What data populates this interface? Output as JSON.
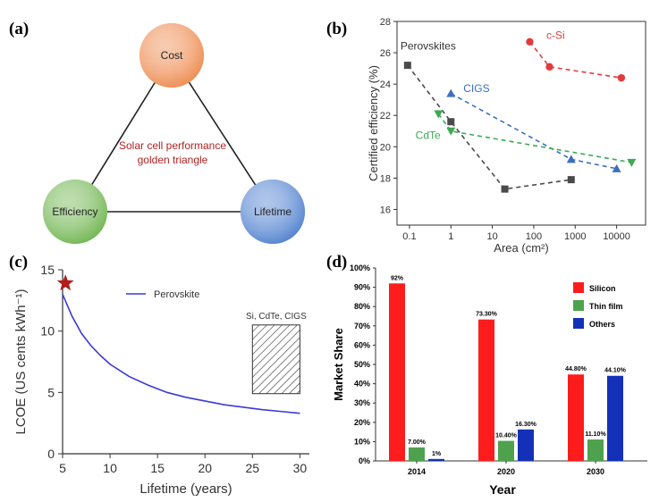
{
  "panels": {
    "a": {
      "label": "(a)",
      "title": "Solar cell performance golden triangle",
      "title_line1": "Solar cell performance",
      "title_line2": "golden triangle",
      "nodes": [
        {
          "name": "Cost",
          "color": "#ee8a4e"
        },
        {
          "name": "Efficiency",
          "color": "#6fb54f"
        },
        {
          "name": "Lifetime",
          "color": "#4f80cf"
        }
      ]
    },
    "b": {
      "label": "(b)"
    },
    "c": {
      "label": "(c)"
    },
    "d": {
      "label": "(d)"
    }
  },
  "chart_data": [
    {
      "id": "b",
      "type": "line",
      "x_scale": "log",
      "xlabel": "Area (cm²)",
      "ylabel": "Certified efficiency (%)",
      "xlim": [
        0.05,
        50000
      ],
      "ylim": [
        15,
        28
      ],
      "xticks": [
        0.1,
        1,
        10,
        100,
        1000,
        10000
      ],
      "xtick_labels": [
        "0.1",
        "1",
        "10",
        "100",
        "1000",
        "10000"
      ],
      "yticks": [
        16,
        18,
        20,
        22,
        24,
        26,
        28
      ],
      "series": [
        {
          "name": "Perovskites",
          "color": "#4a4a4a",
          "marker": "square",
          "x": [
            0.09,
            1,
            20,
            800
          ],
          "y": [
            25.2,
            21.6,
            17.3,
            17.9
          ]
        },
        {
          "name": "c-Si",
          "color": "#e03c3c",
          "marker": "circle",
          "x": [
            80,
            240,
            13000
          ],
          "y": [
            26.7,
            25.1,
            24.4
          ]
        },
        {
          "name": "CIGS",
          "color": "#3c6fbf",
          "marker": "triangle-up",
          "x": [
            1,
            800,
            10000
          ],
          "y": [
            23.4,
            19.2,
            18.6
          ]
        },
        {
          "name": "CdTe",
          "color": "#3caa55",
          "marker": "triangle-down",
          "x": [
            0.5,
            1,
            23000
          ],
          "y": [
            22.1,
            21.0,
            19.0
          ]
        }
      ]
    },
    {
      "id": "c",
      "type": "line",
      "xlabel": "Lifetime (years)",
      "ylabel": "LCOE (US cents kWh⁻¹)",
      "xlim": [
        5,
        31
      ],
      "ylim": [
        0,
        15
      ],
      "xticks": [
        5,
        10,
        15,
        20,
        25,
        30
      ],
      "yticks": [
        0,
        5,
        10,
        15
      ],
      "series": [
        {
          "name": "Perovskite",
          "color": "#3a3ad6",
          "x": [
            5,
            6,
            7,
            8,
            9,
            10,
            12,
            14,
            16,
            18,
            20,
            22,
            24,
            26,
            28,
            30
          ],
          "y": [
            13.0,
            11.2,
            9.8,
            8.8,
            8.0,
            7.3,
            6.3,
            5.6,
            5.0,
            4.6,
            4.3,
            4.0,
            3.8,
            3.6,
            3.45,
            3.3
          ]
        }
      ],
      "star": {
        "x": 5.3,
        "y": 13.9,
        "color": "#b01e1e"
      },
      "hatched_region": {
        "label": "Si, CdTe, CIGS",
        "x": [
          25,
          30
        ],
        "y": [
          4.9,
          10.5
        ]
      }
    },
    {
      "id": "d",
      "type": "bar",
      "xlabel": "Year",
      "ylabel": "Market Share",
      "categories": [
        "2014",
        "2020",
        "2030"
      ],
      "ylim": [
        0,
        100
      ],
      "yticks": [
        0,
        10,
        20,
        30,
        40,
        50,
        60,
        70,
        80,
        90,
        100
      ],
      "ytick_labels": [
        "0%",
        "10%",
        "20%",
        "30%",
        "40%",
        "50%",
        "60%",
        "70%",
        "80%",
        "90%",
        "100%"
      ],
      "series": [
        {
          "name": "Silicon",
          "color": "#ff1c1c",
          "values": [
            92,
            73.3,
            44.8
          ],
          "labels": [
            "92%",
            "73.30%",
            "44.80%"
          ]
        },
        {
          "name": "Thin film",
          "color": "#4ea24e",
          "values": [
            7.0,
            10.4,
            11.1
          ],
          "labels": [
            "7.00%",
            "10.40%",
            "11.10%"
          ]
        },
        {
          "name": "Others",
          "color": "#1430b8",
          "values": [
            1,
            16.3,
            44.1
          ],
          "labels": [
            "1%",
            "16.30%",
            "44.10%"
          ]
        }
      ]
    }
  ]
}
